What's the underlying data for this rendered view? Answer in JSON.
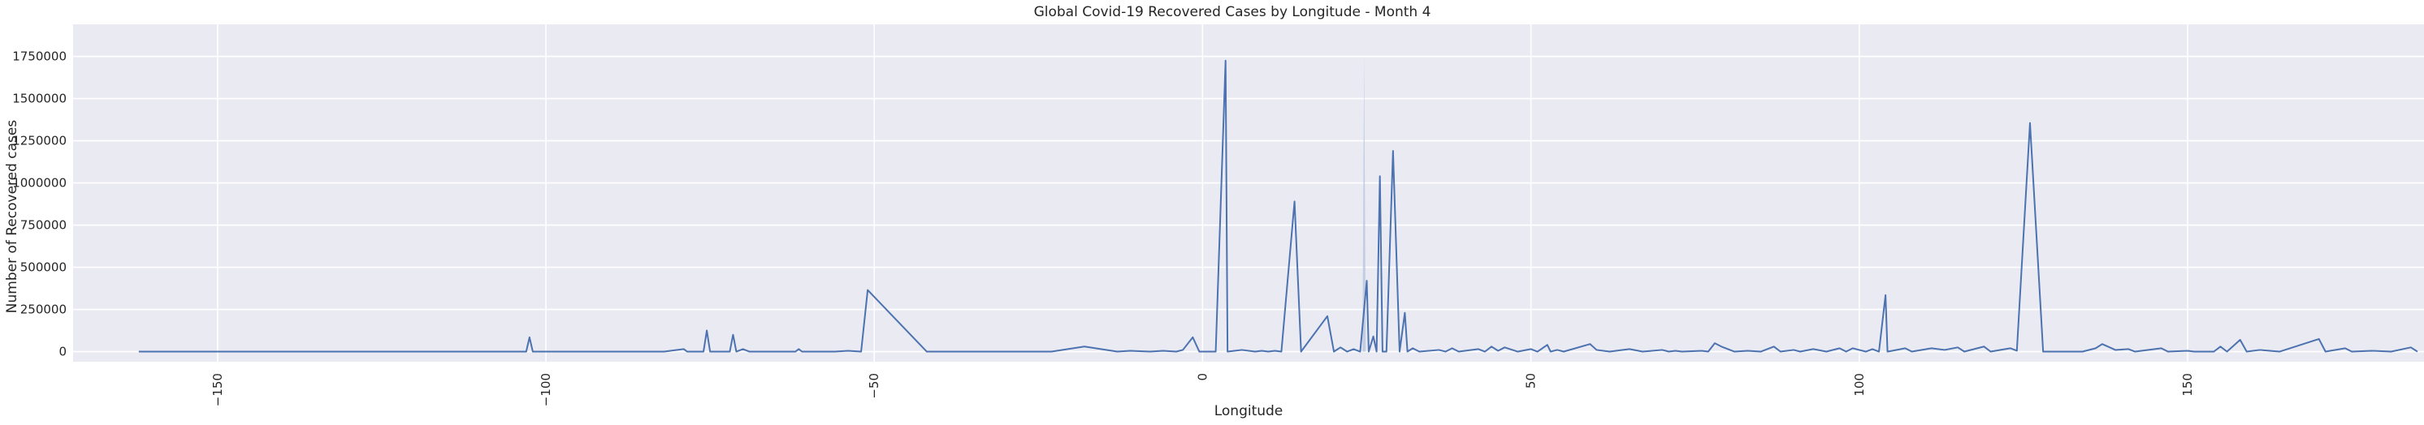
{
  "chart_data": {
    "type": "line",
    "title": "Global Covid-19 Recovered Cases by Longitude - Month 4",
    "xlabel": "Longitude",
    "ylabel": "Number of Recovered cases",
    "xlim": [
      -172,
      186
    ],
    "ylim": [
      -60000,
      1940000
    ],
    "xticks": [
      -150,
      -100,
      -50,
      0,
      50,
      100,
      150
    ],
    "yticks": [
      0,
      250000,
      500000,
      750000,
      1000000,
      1250000,
      1500000,
      1750000
    ],
    "grid": true,
    "legend": "none",
    "colors": {
      "background": "#eaeaf2",
      "grid": "#ffffff",
      "line": "#4c72b0",
      "band": "#b8c6e0"
    },
    "series": [
      {
        "points": [
          [
            -162,
            0
          ],
          [
            -103,
            0
          ],
          [
            -102.5,
            85000
          ],
          [
            -102,
            0
          ],
          [
            -84,
            0
          ],
          [
            -82,
            0
          ],
          [
            -79,
            15000
          ],
          [
            -78.5,
            0
          ],
          [
            -76,
            0
          ],
          [
            -75.5,
            125000
          ],
          [
            -75,
            0
          ],
          [
            -72,
            0
          ],
          [
            -71.5,
            100000
          ],
          [
            -71,
            0
          ],
          [
            -70,
            15000
          ],
          [
            -69,
            0
          ],
          [
            -62,
            0
          ],
          [
            -61.5,
            15000
          ],
          [
            -61,
            0
          ],
          [
            -56,
            0
          ],
          [
            -54,
            5000
          ],
          [
            -52,
            0
          ],
          [
            -51,
            365000
          ],
          [
            -42,
            0
          ],
          [
            -23,
            0
          ],
          [
            -18,
            30000
          ],
          [
            -13,
            0
          ],
          [
            -11,
            5000
          ],
          [
            -8,
            0
          ],
          [
            -6,
            5000
          ],
          [
            -4,
            0
          ],
          [
            -3,
            10000
          ],
          [
            -1.5,
            85000
          ],
          [
            -0.5,
            0
          ],
          [
            1,
            0
          ],
          [
            2,
            0
          ],
          [
            3.5,
            1725000
          ],
          [
            3.8,
            0
          ],
          [
            6,
            10000
          ],
          [
            8,
            0
          ],
          [
            9,
            5000
          ],
          [
            10,
            0
          ],
          [
            11,
            5000
          ],
          [
            12,
            0
          ],
          [
            14,
            890000
          ],
          [
            15,
            0
          ],
          [
            19,
            210000
          ],
          [
            20,
            0
          ],
          [
            21,
            25000
          ],
          [
            22,
            0
          ],
          [
            23,
            15000
          ],
          [
            24,
            0
          ],
          [
            25,
            420000
          ],
          [
            25.3,
            0
          ],
          [
            26,
            90000
          ],
          [
            26.5,
            0
          ],
          [
            27,
            1040000
          ],
          [
            27.4,
            0
          ],
          [
            28,
            0
          ],
          [
            29,
            1190000
          ],
          [
            30,
            0
          ],
          [
            30.8,
            230000
          ],
          [
            31.2,
            0
          ],
          [
            32,
            20000
          ],
          [
            33,
            0
          ],
          [
            36,
            10000
          ],
          [
            37,
            0
          ],
          [
            38,
            20000
          ],
          [
            39,
            0
          ],
          [
            42,
            15000
          ],
          [
            43,
            0
          ],
          [
            44,
            30000
          ],
          [
            45,
            5000
          ],
          [
            46,
            25000
          ],
          [
            48,
            0
          ],
          [
            50,
            15000
          ],
          [
            51,
            0
          ],
          [
            52.5,
            40000
          ],
          [
            53,
            0
          ],
          [
            54,
            10000
          ],
          [
            55,
            0
          ],
          [
            59,
            45000
          ],
          [
            60,
            10000
          ],
          [
            62,
            0
          ],
          [
            65,
            15000
          ],
          [
            67,
            0
          ],
          [
            70,
            10000
          ],
          [
            71,
            0
          ],
          [
            72,
            5000
          ],
          [
            73,
            0
          ],
          [
            76,
            5000
          ],
          [
            77,
            0
          ],
          [
            78,
            50000
          ],
          [
            79,
            30000
          ],
          [
            81,
            0
          ],
          [
            83,
            5000
          ],
          [
            85,
            0
          ],
          [
            87,
            30000
          ],
          [
            88,
            0
          ],
          [
            90,
            10000
          ],
          [
            91,
            0
          ],
          [
            93,
            15000
          ],
          [
            95,
            0
          ],
          [
            97,
            20000
          ],
          [
            98,
            0
          ],
          [
            99,
            20000
          ],
          [
            101,
            0
          ],
          [
            102,
            15000
          ],
          [
            103,
            0
          ],
          [
            104,
            335000
          ],
          [
            104.3,
            0
          ],
          [
            105,
            5000
          ],
          [
            107,
            20000
          ],
          [
            108,
            0
          ],
          [
            111,
            20000
          ],
          [
            113,
            10000
          ],
          [
            115,
            25000
          ],
          [
            116,
            0
          ],
          [
            119,
            30000
          ],
          [
            120,
            0
          ],
          [
            123,
            20000
          ],
          [
            124,
            5000
          ],
          [
            126,
            1355000
          ],
          [
            128,
            0
          ],
          [
            134,
            0
          ],
          [
            136,
            20000
          ],
          [
            137,
            45000
          ],
          [
            139,
            10000
          ],
          [
            141,
            15000
          ],
          [
            142,
            0
          ],
          [
            146,
            20000
          ],
          [
            147,
            0
          ],
          [
            150,
            5000
          ],
          [
            151,
            0
          ],
          [
            154,
            0
          ],
          [
            155,
            30000
          ],
          [
            156,
            0
          ],
          [
            158,
            70000
          ],
          [
            159,
            0
          ],
          [
            161,
            10000
          ],
          [
            164,
            0
          ],
          [
            170,
            75000
          ],
          [
            171,
            0
          ],
          [
            174,
            20000
          ],
          [
            175,
            0
          ],
          [
            178,
            5000
          ],
          [
            181,
            0
          ],
          [
            184,
            25000
          ],
          [
            185,
            0
          ]
        ]
      }
    ]
  }
}
